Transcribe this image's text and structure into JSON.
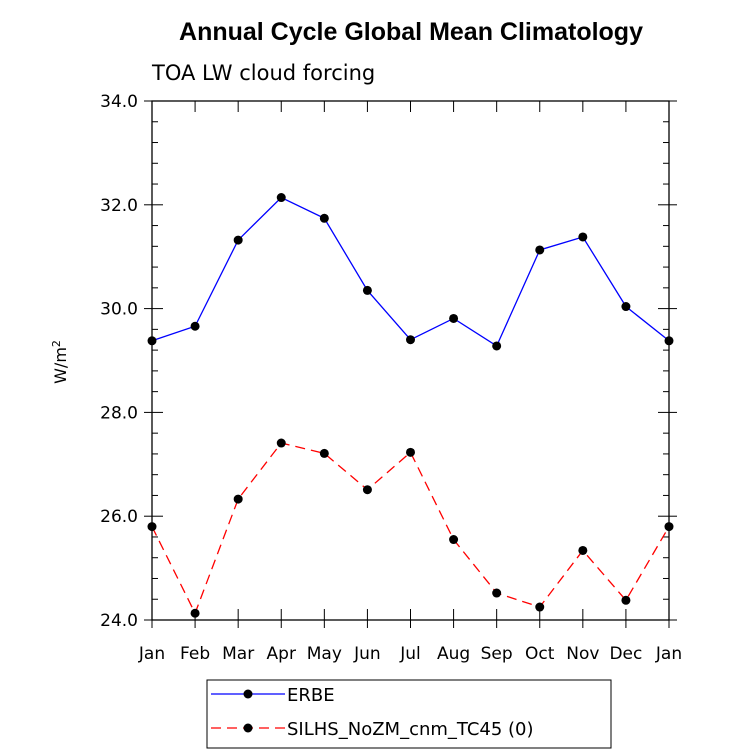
{
  "chart_data": {
    "type": "line",
    "title": "Annual Cycle Global Mean Climatology",
    "subtitle": "TOA LW cloud forcing",
    "ylabel": "W/m",
    "ylabel_superscript": "2",
    "categories": [
      "Jan",
      "Feb",
      "Mar",
      "Apr",
      "May",
      "Jun",
      "Jul",
      "Aug",
      "Sep",
      "Oct",
      "Nov",
      "Dec",
      "Jan"
    ],
    "ylim": [
      24.0,
      34.0
    ],
    "yticks": [
      "24.0",
      "26.0",
      "28.0",
      "30.0",
      "32.0",
      "34.0"
    ],
    "grid": false,
    "legend_position": "bottom",
    "series": [
      {
        "name": "ERBE",
        "color": "#0000ff",
        "style": "solid",
        "values": [
          29.38,
          29.66,
          31.32,
          32.14,
          31.74,
          30.35,
          29.4,
          29.81,
          29.28,
          31.13,
          31.38,
          30.04,
          29.38
        ]
      },
      {
        "name": "SILHS_NoZM_cnm_TC45 (0)",
        "color": "#ff0000",
        "style": "dashed",
        "values": [
          25.8,
          24.13,
          26.33,
          27.41,
          27.21,
          26.51,
          27.23,
          25.55,
          24.52,
          24.25,
          25.34,
          24.38,
          25.8
        ]
      }
    ]
  }
}
